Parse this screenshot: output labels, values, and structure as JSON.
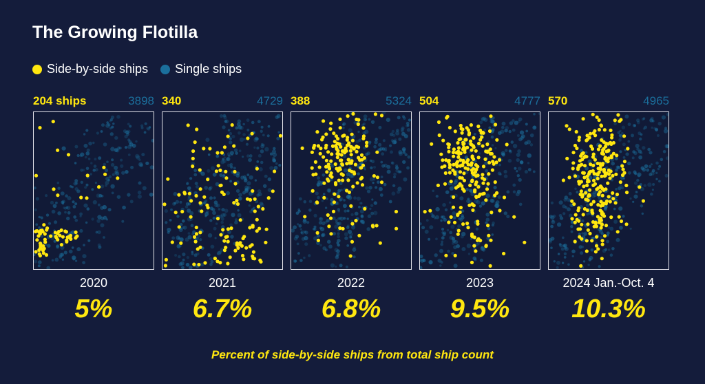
{
  "title": "The Growing Flotilla",
  "legend": {
    "side_label": "Side-by-side ships",
    "single_label": "Single ships",
    "side_color": "#ffe70f",
    "single_color": "#1b6f9c"
  },
  "caption": "Percent of side-by-side ships from total ship count",
  "chart_data": {
    "type": "scatter",
    "series": [
      {
        "name": "Side-by-side ships",
        "color": "#ffe70f"
      },
      {
        "name": "Single ships",
        "color": "#1b6f9c"
      }
    ],
    "panels": [
      {
        "year": "2020",
        "side_by_side_label": "204 ships",
        "side_by_side_count": 204,
        "single_label": "3898",
        "single_count": 3898,
        "percent_label": "5%",
        "percent": 5.0
      },
      {
        "year": "2021",
        "side_by_side_label": "340",
        "side_by_side_count": 340,
        "single_label": "4729",
        "single_count": 4729,
        "percent_label": "6.7%",
        "percent": 6.7
      },
      {
        "year": "2022",
        "side_by_side_label": "388",
        "side_by_side_count": 388,
        "single_label": "5324",
        "single_count": 5324,
        "percent_label": "6.8%",
        "percent": 6.8
      },
      {
        "year": "2023",
        "side_by_side_label": "504",
        "side_by_side_count": 504,
        "single_label": "4777",
        "single_count": 4777,
        "percent_label": "9.5%",
        "percent": 9.5
      },
      {
        "year": "2024 Jan.-Oct. 4",
        "side_by_side_label": "570",
        "side_by_side_count": 570,
        "single_label": "4965",
        "single_count": 4965,
        "percent_label": "10.3%",
        "percent": 10.3
      }
    ]
  }
}
